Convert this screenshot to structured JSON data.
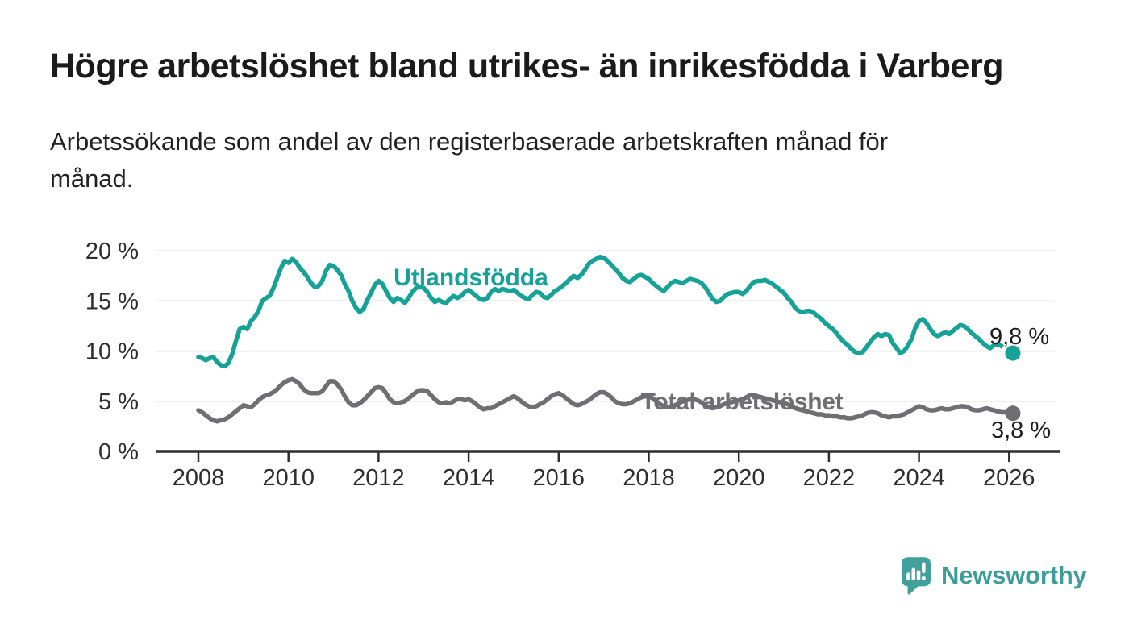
{
  "header": {
    "title": "Högre arbetslöshet bland utrikes- än inrikesfödda i Varberg",
    "subtitle": "Arbetssökande som andel av den registerbaserade arbetskraften månad för\nmånad."
  },
  "chart_data": {
    "type": "line",
    "x_unit": "month",
    "start_year": 2008,
    "step_months": 1,
    "x_axis": {
      "tick_years": [
        2008,
        2010,
        2012,
        2014,
        2016,
        2018,
        2020,
        2022,
        2024,
        2026
      ],
      "range": [
        2007.05,
        2027.0
      ]
    },
    "y_axis": {
      "ticks": [
        {
          "value": 20,
          "label": "20 %"
        },
        {
          "value": 15,
          "label": "15 %"
        },
        {
          "value": 10,
          "label": "10 %"
        },
        {
          "value": 5,
          "label": "5 %"
        },
        {
          "value": 0,
          "label": "0 %"
        }
      ],
      "gridlines": [
        5,
        10,
        15,
        20
      ],
      "range": [
        0,
        20
      ]
    },
    "grid": "horizontal-only",
    "colors": {
      "utlandsfodda": "#16A296",
      "total": "#6E6E73",
      "gridline": "#dcdcdc",
      "axis": "#2e2e2e",
      "tick_text": "#2e2e2e",
      "value_text": "#1d1d1d"
    },
    "series": [
      {
        "id": "utlandsfodda",
        "name": "Utlandsfödda",
        "color": "#16A296",
        "dashed_from_index": 213,
        "end_value": 9.8,
        "end_label": "9,8 %",
        "values": [
          9.4,
          9.3,
          9.1,
          9.3,
          9.4,
          8.9,
          8.6,
          8.5,
          8.8,
          9.7,
          11.0,
          12.2,
          12.4,
          12.2,
          13.0,
          13.4,
          14.0,
          15.0,
          15.3,
          15.5,
          16.3,
          17.3,
          18.3,
          19.0,
          18.8,
          19.2,
          18.9,
          18.3,
          17.9,
          17.4,
          16.8,
          16.4,
          16.5,
          17.0,
          18.0,
          18.6,
          18.5,
          18.1,
          17.6,
          16.7,
          16.0,
          15.0,
          14.3,
          13.9,
          14.2,
          15.1,
          15.8,
          16.6,
          17.0,
          16.7,
          16.0,
          15.3,
          14.9,
          15.3,
          15.1,
          14.8,
          15.3,
          15.9,
          16.3,
          16.4,
          16.3,
          15.9,
          15.3,
          14.9,
          15.1,
          14.9,
          14.8,
          15.2,
          15.5,
          15.3,
          15.5,
          15.9,
          16.1,
          15.8,
          15.5,
          15.2,
          15.1,
          15.3,
          15.9,
          16.2,
          16.0,
          16.2,
          16.1,
          16.0,
          16.1,
          15.8,
          15.5,
          15.3,
          15.2,
          15.6,
          15.9,
          15.8,
          15.4,
          15.3,
          15.6,
          16.0,
          16.2,
          16.5,
          16.8,
          17.2,
          17.5,
          17.3,
          17.6,
          18.1,
          18.7,
          19.0,
          19.2,
          19.4,
          19.3,
          19.0,
          18.6,
          18.2,
          17.8,
          17.3,
          17.0,
          16.9,
          17.2,
          17.5,
          17.6,
          17.4,
          17.2,
          16.8,
          16.5,
          16.2,
          16.0,
          16.4,
          16.8,
          17.0,
          16.9,
          16.8,
          17.0,
          17.2,
          17.1,
          17.0,
          16.8,
          16.4,
          15.8,
          15.2,
          14.9,
          15.0,
          15.4,
          15.7,
          15.8,
          15.9,
          15.9,
          15.7,
          16.0,
          16.5,
          16.9,
          17.0,
          17.0,
          17.1,
          16.9,
          16.7,
          16.4,
          16.1,
          15.8,
          15.3,
          14.9,
          14.3,
          14.0,
          13.9,
          14.0,
          14.0,
          13.8,
          13.5,
          13.2,
          12.8,
          12.5,
          12.2,
          11.8,
          11.3,
          10.9,
          10.6,
          10.2,
          9.9,
          9.8,
          9.9,
          10.4,
          10.9,
          11.4,
          11.7,
          11.5,
          11.7,
          11.6,
          10.8,
          10.3,
          9.8,
          10.0,
          10.5,
          11.2,
          12.3,
          13.0,
          13.2,
          12.8,
          12.2,
          11.7,
          11.5,
          11.7,
          11.9,
          11.7,
          12.0,
          12.3,
          12.6,
          12.5,
          12.2,
          11.8,
          11.5,
          11.2,
          10.8,
          10.5,
          10.3,
          10.6,
          10.7,
          10.5,
          10.2,
          10.0,
          9.8
        ]
      },
      {
        "id": "total",
        "name": "Total arbetslöshet",
        "color": "#6E6E73",
        "end_value": 3.8,
        "end_label": "3,8 %",
        "values": [
          4.1,
          3.9,
          3.6,
          3.3,
          3.1,
          3.0,
          3.1,
          3.2,
          3.4,
          3.7,
          4.0,
          4.3,
          4.6,
          4.5,
          4.4,
          4.7,
          5.1,
          5.4,
          5.6,
          5.7,
          5.9,
          6.2,
          6.6,
          6.9,
          7.1,
          7.2,
          7.0,
          6.7,
          6.2,
          5.9,
          5.8,
          5.8,
          5.8,
          6.0,
          6.5,
          7.0,
          7.0,
          6.7,
          6.2,
          5.5,
          4.9,
          4.6,
          4.6,
          4.8,
          5.1,
          5.5,
          5.9,
          6.3,
          6.4,
          6.3,
          5.8,
          5.2,
          4.9,
          4.8,
          4.9,
          5.0,
          5.3,
          5.6,
          5.9,
          6.1,
          6.1,
          6.0,
          5.6,
          5.2,
          4.9,
          4.8,
          4.9,
          4.8,
          5.0,
          5.2,
          5.2,
          5.1,
          5.2,
          5.0,
          4.7,
          4.4,
          4.2,
          4.3,
          4.3,
          4.5,
          4.7,
          4.9,
          5.1,
          5.3,
          5.5,
          5.3,
          5.0,
          4.7,
          4.5,
          4.4,
          4.5,
          4.7,
          4.9,
          5.2,
          5.5,
          5.7,
          5.8,
          5.6,
          5.3,
          5.0,
          4.7,
          4.6,
          4.7,
          4.9,
          5.1,
          5.4,
          5.7,
          5.9,
          5.9,
          5.7,
          5.4,
          5.0,
          4.8,
          4.7,
          4.7,
          4.8,
          5.0,
          5.2,
          5.4,
          5.5,
          5.5,
          5.3,
          5.0,
          4.7,
          4.5,
          4.4,
          4.5,
          4.6,
          4.8,
          5.0,
          5.1,
          5.2,
          5.2,
          5.1,
          4.9,
          4.6,
          4.4,
          4.3,
          4.4,
          4.5,
          4.7,
          4.8,
          4.9,
          5.0,
          5.1,
          5.2,
          5.4,
          5.6,
          5.6,
          5.5,
          5.4,
          5.3,
          5.2,
          5.1,
          5.0,
          4.9,
          4.8,
          4.7,
          4.5,
          4.3,
          4.2,
          4.1,
          4.0,
          3.9,
          3.8,
          3.7,
          3.7,
          3.6,
          3.6,
          3.5,
          3.5,
          3.4,
          3.4,
          3.3,
          3.3,
          3.4,
          3.5,
          3.6,
          3.8,
          3.9,
          3.9,
          3.8,
          3.6,
          3.5,
          3.4,
          3.5,
          3.5,
          3.6,
          3.7,
          3.9,
          4.1,
          4.3,
          4.5,
          4.4,
          4.2,
          4.1,
          4.1,
          4.2,
          4.3,
          4.2,
          4.2,
          4.3,
          4.4,
          4.5,
          4.5,
          4.4,
          4.2,
          4.1,
          4.1,
          4.2,
          4.3,
          4.2,
          4.1,
          4.0,
          3.9,
          3.9,
          3.8,
          3.8
        ]
      }
    ],
    "series_labels": [
      {
        "text": "Utlandsfödda"
      },
      {
        "text": "Total arbetslöshet"
      }
    ]
  },
  "footer": {
    "brand": "Newsworthy"
  }
}
